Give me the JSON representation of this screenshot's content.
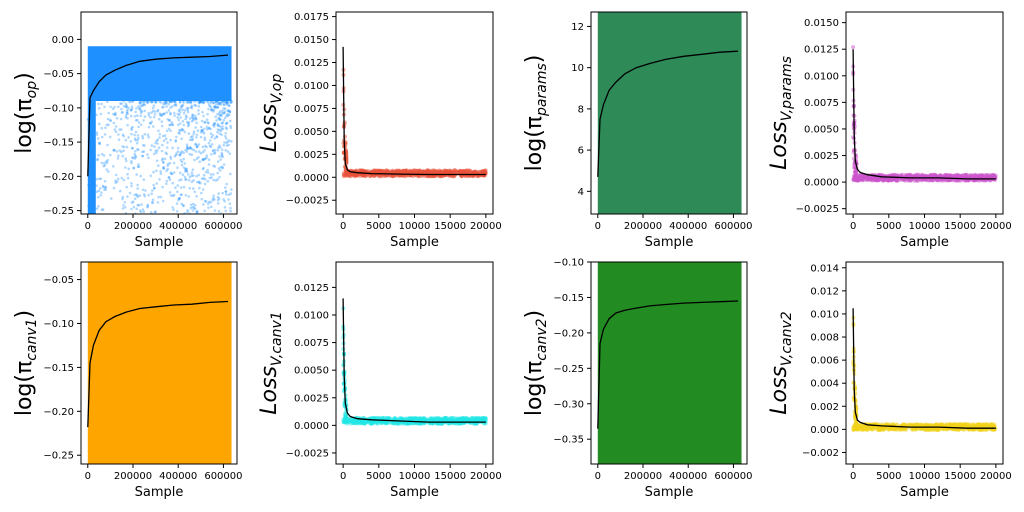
{
  "colors": {
    "log_op": "#1e90ff",
    "loss_op": "#e8533a",
    "log_params": "#2e8b57",
    "loss_params": "#cc55cc",
    "log_canv1": "#ffa500",
    "loss_canv1": "#22e6e6",
    "log_canv2": "#228b22",
    "loss_canv2": "#f2d21a",
    "trend": "#000000"
  },
  "chart_data": [
    {
      "id": "log_op",
      "type": "scatter",
      "ylabel": "log(π",
      "ylabel_sub": "op",
      "ylabel_close": ")",
      "xlabel": "Sample",
      "xlim": [
        -30000,
        660000
      ],
      "ylim": [
        -0.255,
        0.04
      ],
      "xticks": [
        0,
        200000,
        400000,
        600000
      ],
      "xtick_labels": [
        "0",
        "200000",
        "400000",
        "600000"
      ],
      "yticks": [
        0.0,
        -0.05,
        -0.1,
        -0.15,
        -0.2,
        -0.25
      ],
      "ytick_labels": [
        "0.00",
        "−0.05",
        "−0.10",
        "−0.15",
        "−0.20",
        "−0.25"
      ],
      "band": [
        -0.01,
        -0.255
      ],
      "trend": {
        "x": [
          0,
          10000,
          25000,
          50000,
          80000,
          120000,
          170000,
          230000,
          300000,
          380000,
          460000,
          540000,
          620000
        ],
        "y": [
          -0.2,
          -0.085,
          -0.075,
          -0.062,
          -0.052,
          -0.045,
          -0.038,
          -0.032,
          -0.029,
          -0.027,
          -0.026,
          -0.025,
          -0.023
        ]
      }
    },
    {
      "id": "loss_op",
      "type": "scatter",
      "ylabel": "Loss",
      "ylabel_sub": "V,op",
      "ylabel_close": "",
      "xlabel": "Sample",
      "xlim": [
        -1000,
        21000
      ],
      "ylim": [
        -0.004,
        0.018
      ],
      "xticks": [
        0,
        5000,
        10000,
        15000,
        20000
      ],
      "xtick_labels": [
        "0",
        "5000",
        "10000",
        "15000",
        "20000"
      ],
      "yticks": [
        0.0175,
        0.015,
        0.0125,
        0.01,
        0.0075,
        0.005,
        0.0025,
        0.0,
        -0.0025
      ],
      "ytick_labels": [
        "0.0175",
        "0.0150",
        "0.0125",
        "0.0100",
        "0.0075",
        "0.0050",
        "0.0025",
        "0.0000",
        "−0.0025"
      ],
      "trend": {
        "x": [
          0,
          150,
          300,
          600,
          1000,
          2000,
          4000,
          8000,
          12000,
          16000,
          20000
        ],
        "y": [
          0.0142,
          0.004,
          0.0015,
          0.0008,
          0.0006,
          0.0005,
          0.0004,
          0.00035,
          0.0003,
          0.0003,
          0.0003
        ]
      }
    },
    {
      "id": "log_params",
      "type": "scatter",
      "ylabel": "log(π",
      "ylabel_sub": "params",
      "ylabel_close": ")",
      "xlabel": "Sample",
      "xlim": [
        -30000,
        660000
      ],
      "ylim": [
        2.9,
        12.7
      ],
      "xticks": [
        0,
        200000,
        400000,
        600000
      ],
      "xtick_labels": [
        "0",
        "200000",
        "400000",
        "600000"
      ],
      "yticks": [
        12,
        10,
        8,
        6,
        4
      ],
      "ytick_labels": [
        "12",
        "10",
        "8",
        "6",
        "4"
      ],
      "band": [
        12.7,
        2.9
      ],
      "trend": {
        "x": [
          0,
          10000,
          25000,
          50000,
          80000,
          120000,
          170000,
          230000,
          300000,
          380000,
          460000,
          540000,
          620000
        ],
        "y": [
          4.7,
          7.5,
          8.2,
          8.9,
          9.3,
          9.7,
          10.0,
          10.2,
          10.4,
          10.55,
          10.65,
          10.75,
          10.8
        ]
      }
    },
    {
      "id": "loss_params",
      "type": "scatter",
      "ylabel": "Loss",
      "ylabel_sub": "V,params",
      "ylabel_close": "",
      "xlabel": "Sample",
      "xlim": [
        -1000,
        21000
      ],
      "ylim": [
        -0.003,
        0.016
      ],
      "xticks": [
        0,
        5000,
        10000,
        15000,
        20000
      ],
      "xtick_labels": [
        "0",
        "5000",
        "10000",
        "15000",
        "20000"
      ],
      "yticks": [
        0.015,
        0.0125,
        0.01,
        0.0075,
        0.005,
        0.0025,
        0.0,
        -0.0025
      ],
      "ytick_labels": [
        "0.0150",
        "0.0125",
        "0.0100",
        "0.0075",
        "0.0050",
        "0.0025",
        "0.0000",
        "−0.0025"
      ],
      "trend": {
        "x": [
          0,
          150,
          300,
          600,
          1000,
          2000,
          4000,
          8000,
          12000,
          16000,
          20000
        ],
        "y": [
          0.0125,
          0.0045,
          0.002,
          0.0012,
          0.0009,
          0.0007,
          0.0005,
          0.0004,
          0.0004,
          0.0003,
          0.0003
        ]
      }
    },
    {
      "id": "log_canv1",
      "type": "scatter",
      "ylabel": "log(π",
      "ylabel_sub": "canv1",
      "ylabel_close": ")",
      "xlabel": "Sample",
      "xlim": [
        -30000,
        660000
      ],
      "ylim": [
        -0.26,
        -0.03
      ],
      "xticks": [
        0,
        200000,
        400000,
        600000
      ],
      "xtick_labels": [
        "0",
        "200000",
        "400000",
        "600000"
      ],
      "yticks": [
        -0.05,
        -0.1,
        -0.15,
        -0.2,
        -0.25
      ],
      "ytick_labels": [
        "−0.05",
        "−0.10",
        "−0.15",
        "−0.20",
        "−0.25"
      ],
      "band": [
        -0.03,
        -0.26
      ],
      "trend": {
        "x": [
          0,
          10000,
          25000,
          50000,
          80000,
          120000,
          170000,
          230000,
          300000,
          380000,
          460000,
          540000,
          620000
        ],
        "y": [
          -0.218,
          -0.145,
          -0.125,
          -0.108,
          -0.098,
          -0.092,
          -0.087,
          -0.083,
          -0.081,
          -0.079,
          -0.078,
          -0.076,
          -0.075
        ]
      }
    },
    {
      "id": "loss_canv1",
      "type": "scatter",
      "ylabel": "Loss",
      "ylabel_sub": "V,canv1",
      "ylabel_close": "",
      "xlabel": "Sample",
      "xlim": [
        -1000,
        21000
      ],
      "ylim": [
        -0.0035,
        0.0148
      ],
      "xticks": [
        0,
        5000,
        10000,
        15000,
        20000
      ],
      "xtick_labels": [
        "0",
        "5000",
        "10000",
        "15000",
        "20000"
      ],
      "yticks": [
        0.0125,
        0.01,
        0.0075,
        0.005,
        0.0025,
        0.0,
        -0.0025
      ],
      "ytick_labels": [
        "0.0125",
        "0.0100",
        "0.0075",
        "0.0050",
        "0.0025",
        "0.0000",
        "−0.0025"
      ],
      "trend": {
        "x": [
          0,
          150,
          300,
          600,
          1000,
          2000,
          4000,
          8000,
          12000,
          16000,
          20000
        ],
        "y": [
          0.0115,
          0.0045,
          0.002,
          0.0011,
          0.0008,
          0.0006,
          0.0005,
          0.0004,
          0.0003,
          0.0003,
          0.0003
        ]
      }
    },
    {
      "id": "log_canv2",
      "type": "scatter",
      "ylabel": "log(π",
      "ylabel_sub": "canv2",
      "ylabel_close": ")",
      "xlabel": "Sample",
      "xlim": [
        -30000,
        660000
      ],
      "ylim": [
        -0.385,
        -0.1
      ],
      "xticks": [
        0,
        200000,
        400000,
        600000
      ],
      "xtick_labels": [
        "0",
        "200000",
        "400000",
        "600000"
      ],
      "yticks": [
        -0.1,
        -0.15,
        -0.2,
        -0.25,
        -0.3,
        -0.35
      ],
      "ytick_labels": [
        "−0.10",
        "−0.15",
        "−0.20",
        "−0.25",
        "−0.30",
        "−0.35"
      ],
      "band": [
        -0.1,
        -0.385
      ],
      "trend": {
        "x": [
          0,
          10000,
          25000,
          50000,
          80000,
          120000,
          170000,
          230000,
          300000,
          380000,
          460000,
          540000,
          620000
        ],
        "y": [
          -0.335,
          -0.215,
          -0.195,
          -0.18,
          -0.172,
          -0.168,
          -0.165,
          -0.162,
          -0.16,
          -0.158,
          -0.157,
          -0.156,
          -0.155
        ]
      }
    },
    {
      "id": "loss_canv2",
      "type": "scatter",
      "ylabel": "Loss",
      "ylabel_sub": "V,canv2",
      "ylabel_close": "",
      "xlabel": "Sample",
      "xlim": [
        -1000,
        21000
      ],
      "ylim": [
        -0.003,
        0.0145
      ],
      "xticks": [
        0,
        5000,
        10000,
        15000,
        20000
      ],
      "xtick_labels": [
        "0",
        "5000",
        "10000",
        "15000",
        "20000"
      ],
      "yticks": [
        0.014,
        0.012,
        0.01,
        0.008,
        0.006,
        0.004,
        0.002,
        0.0,
        -0.002
      ],
      "ytick_labels": [
        "0.014",
        "0.012",
        "0.010",
        "0.008",
        "0.006",
        "0.004",
        "0.002",
        "0.000",
        "−0.002"
      ],
      "trend": {
        "x": [
          0,
          150,
          300,
          600,
          1000,
          2000,
          4000,
          8000,
          12000,
          16000,
          20000
        ],
        "y": [
          0.0105,
          0.0035,
          0.0015,
          0.0008,
          0.0006,
          0.0004,
          0.0003,
          0.0002,
          0.0002,
          0.0001,
          0.0001
        ]
      }
    }
  ]
}
